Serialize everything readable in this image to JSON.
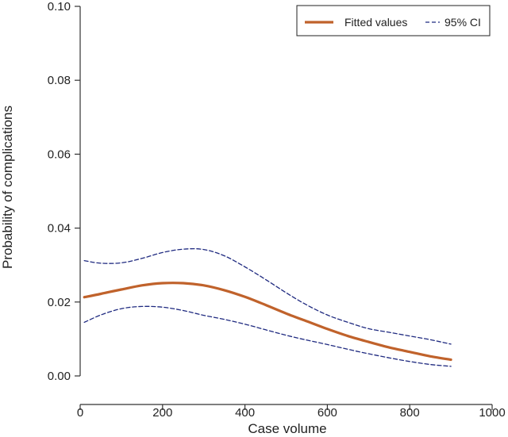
{
  "chart_data": {
    "type": "line",
    "title": "",
    "xlabel": "Case volume",
    "ylabel": "Probability of complications",
    "xlim": [
      0,
      1000
    ],
    "ylim": [
      0,
      0.1
    ],
    "x_ticks": [
      0,
      200,
      400,
      600,
      800,
      1000
    ],
    "x_tick_labels": [
      "0",
      "200",
      "400",
      "600",
      "800",
      "1000"
    ],
    "y_ticks": [
      0,
      0.02,
      0.04,
      0.06,
      0.08,
      0.1
    ],
    "y_tick_labels": [
      "0.00",
      "0.02",
      "0.04",
      "0.06",
      "0.08",
      "0.10"
    ],
    "grid": false,
    "legend_position": "top-right",
    "series": [
      {
        "name": "Fitted values",
        "style": "solid",
        "color": "#c0622b",
        "x": [
          10,
          50,
          100,
          150,
          200,
          250,
          300,
          350,
          400,
          450,
          500,
          550,
          600,
          650,
          700,
          750,
          800,
          850,
          900
        ],
        "y": [
          0.0213,
          0.0222,
          0.0234,
          0.0245,
          0.0251,
          0.0251,
          0.0245,
          0.0232,
          0.0214,
          0.0192,
          0.0169,
          0.0148,
          0.0127,
          0.0108,
          0.0092,
          0.0077,
          0.0065,
          0.0053,
          0.0044
        ]
      },
      {
        "name": "95% CI",
        "style": "dashed",
        "color": "#1f2a80",
        "x": [
          10,
          50,
          100,
          150,
          200,
          250,
          300,
          350,
          400,
          450,
          500,
          550,
          600,
          650,
          700,
          750,
          800,
          850,
          900
        ],
        "y": [
          0.0312,
          0.0305,
          0.0306,
          0.0318,
          0.0334,
          0.0343,
          0.0342,
          0.0325,
          0.0295,
          0.0261,
          0.0225,
          0.0192,
          0.0165,
          0.0145,
          0.0128,
          0.0118,
          0.0108,
          0.0098,
          0.0086
        ]
      },
      {
        "name": "95% CI",
        "style": "dashed",
        "color": "#1f2a80",
        "x": [
          10,
          50,
          100,
          150,
          200,
          250,
          300,
          350,
          400,
          450,
          500,
          550,
          600,
          650,
          700,
          750,
          800,
          850,
          900
        ],
        "y": [
          0.0145,
          0.0165,
          0.0182,
          0.0188,
          0.0186,
          0.0177,
          0.0164,
          0.0153,
          0.014,
          0.0125,
          0.011,
          0.0097,
          0.0085,
          0.0072,
          0.006,
          0.0049,
          0.0039,
          0.0031,
          0.0026
        ]
      }
    ],
    "legend": [
      {
        "label": "Fitted values",
        "style": "solid",
        "color": "#c0622b"
      },
      {
        "label": "95% CI",
        "style": "dashed",
        "color": "#1f2a80"
      }
    ]
  }
}
